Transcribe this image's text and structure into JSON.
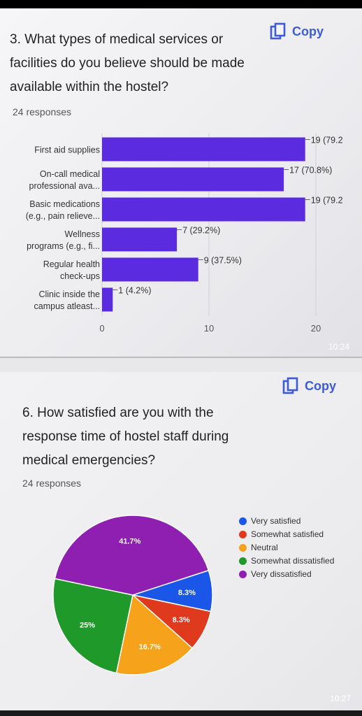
{
  "question1": {
    "text": "3. What types of medical services or facilities do you believe should be made available within the hostel?",
    "responses": "24 responses",
    "copy_label": "Copy",
    "timestamp": "10:24"
  },
  "question2": {
    "text": "6. How satisfied are you with the response time of hostel staff during medical emergencies?",
    "responses": "24 responses",
    "copy_label": "Copy",
    "timestamp": "10:27"
  },
  "colors": {
    "bar": "#5b2be0",
    "copy_accent": "#3b5bdb"
  },
  "chart_data": [
    {
      "type": "bar",
      "orientation": "horizontal",
      "categories": [
        [
          "First aid supplies"
        ],
        [
          "On-call medical",
          "professional ava..."
        ],
        [
          "Basic medications",
          "(e.g., pain relieve..."
        ],
        [
          "Wellness",
          "programs (e.g., fi..."
        ],
        [
          "Regular health",
          "check-ups"
        ],
        [
          "Clinic inside the",
          "campus atleast..."
        ]
      ],
      "values": [
        19,
        17,
        19,
        7,
        9,
        1
      ],
      "data_labels": [
        "19 (79.2",
        "17 (70.8%)",
        "19 (79.2",
        "7 (29.2%)",
        "9 (37.5%)",
        "1 (4.2%)"
      ],
      "xlim": [
        0,
        20
      ],
      "xticks": [
        "0",
        "10",
        "20"
      ],
      "grid": true
    },
    {
      "type": "pie",
      "labels": [
        "Very satisfied",
        "Somewhat satisfied",
        "Neutral",
        "Somewhat dissatisfied",
        "Very dissatisfied"
      ],
      "values": [
        8.3,
        8.3,
        16.7,
        25,
        41.7
      ],
      "slice_labels": [
        "8.3%",
        "8.3%",
        "16.7%",
        "25%",
        "41.7%"
      ],
      "colors": [
        "#1a56e8",
        "#e03a1e",
        "#f7a21b",
        "#1f9a2a",
        "#8e1fb0"
      ],
      "legend": "right"
    }
  ]
}
